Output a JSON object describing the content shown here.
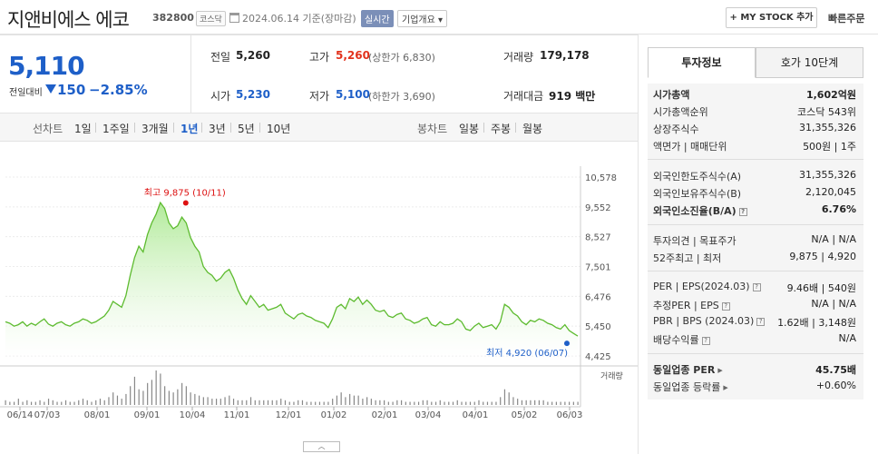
{
  "header": {
    "company_name": "지앤비에스 에코",
    "stock_code": "382800",
    "market_badge": "코스닥",
    "date_text": "2024.06.14 기준(장마감)",
    "live_badge": "실시간",
    "corp_overview_label": "기업개요 ▾",
    "mystock_label": "+ MY STOCK 추가",
    "quick_order_label": "빠른주문"
  },
  "price": {
    "current": "5,110",
    "vs_prev_label": "전일대비",
    "change": "150",
    "change_pct": "−2.85%"
  },
  "summary": {
    "prev_close_label": "전일",
    "prev_close": "5,260",
    "high_label": "고가",
    "high": "5,260",
    "upper_limit": "(상한가 6,830)",
    "volume_label": "거래량",
    "volume": "179,178",
    "open_label": "시가",
    "open": "5,230",
    "low_label": "저가",
    "low": "5,100",
    "lower_limit": "(하한가 3,690)",
    "amount_label": "거래대금",
    "amount": "919 백만"
  },
  "period_tabs": {
    "line_chart_label": "선차트",
    "items": [
      "1일",
      "1주일",
      "3개월",
      "1년",
      "3년",
      "5년",
      "10년"
    ],
    "selected": "1년",
    "candle_label": "봉차트",
    "candle_items": [
      "일봉",
      "주봉",
      "월봉"
    ]
  },
  "right_panel": {
    "tab_invest": "투자정보",
    "tab_orderbook": "호가 10단계",
    "market_cap_label": "시가총액",
    "market_cap": "1,602억원",
    "market_cap_rank_label": "시가총액순위",
    "market_cap_rank": "코스닥 543위",
    "shares_label": "상장주식수",
    "shares": "31,355,326",
    "par_label": "액면가 | 매매단위",
    "par": "500원 | 1주",
    "foreign_limit_label": "외국인한도주식수(A)",
    "foreign_limit": "31,355,326",
    "foreign_hold_label": "외국인보유주식수(B)",
    "foreign_hold": "2,120,045",
    "foreign_ratio_label": "외국인소진율(B/A)",
    "foreign_ratio": "6.76%",
    "opinion_label": "투자의견 | 목표주가",
    "opinion": "N/A | N/A",
    "w52_label": "52주최고 | 최저",
    "w52": "9,875 | 4,920",
    "per_label": "PER | EPS(2024.03)",
    "per": "9.46배 | 540원",
    "est_per_label": "추정PER | EPS",
    "est_per": "N/A | N/A",
    "pbr_label": "PBR | BPS (2024.03)",
    "pbr": "1.62배 | 3,148원",
    "dividend_label": "배당수익률",
    "dividend": "N/A",
    "sector_per_label": "동일업종 PER",
    "sector_per": "45.75배",
    "sector_chg_label": "동일업종 등락률",
    "sector_chg": "+0.60%"
  },
  "chart_data": {
    "type": "line",
    "y_ticks": [
      "10,578",
      "9,552",
      "8,527",
      "7,501",
      "6,476",
      "5,450",
      "4,425"
    ],
    "y_tick_values": [
      10578,
      9552,
      8527,
      7501,
      6476,
      5450,
      4425
    ],
    "x_ticks": [
      "06/14",
      "07/03",
      "08/01",
      "09/01",
      "10/04",
      "11/01",
      "12/01",
      "01/02",
      "02/01",
      "03/04",
      "04/01",
      "05/02",
      "06/03"
    ],
    "high_annotation": "최고 9,875 (10/11)",
    "low_annotation": "최저 4,920 (06/07)",
    "volume_label": "거래량",
    "series": [
      {
        "values": [
          5600,
          5550,
          5450,
          5500,
          5600,
          5450,
          5550,
          5480,
          5600,
          5700,
          5520,
          5450,
          5550,
          5600,
          5500,
          5450,
          5550,
          5600,
          5700,
          5650,
          5550,
          5600,
          5700,
          5800,
          6000,
          6300,
          6200,
          6100,
          6500,
          7200,
          7800,
          8200,
          8000,
          8600,
          9000,
          9300,
          9700,
          9500,
          9000,
          8800,
          8900,
          9200,
          9000,
          8500,
          8200,
          8000,
          7500,
          7300,
          7200,
          7000,
          7100,
          7300,
          7400,
          7100,
          6700,
          6400,
          6200,
          6500,
          6300,
          6100,
          6200,
          6000,
          6050,
          6100,
          6200,
          5900,
          5800,
          5700,
          5850,
          5900,
          5800,
          5750,
          5650,
          5600,
          5550,
          5400,
          5700,
          6100,
          6200,
          6050,
          6400,
          6300,
          6450,
          6200,
          6350,
          6200,
          6000,
          5950,
          6000,
          5800,
          5750,
          5850,
          5900,
          5700,
          5650,
          5550,
          5600,
          5700,
          5750,
          5500,
          5450,
          5600,
          5500,
          5500,
          5550,
          5700,
          5600,
          5350,
          5300,
          5450,
          5550,
          5400,
          5450,
          5500,
          5350,
          5600,
          6200,
          6100,
          5900,
          5800,
          5600,
          5500,
          5650,
          5600,
          5700,
          5650,
          5550,
          5500,
          5400,
          5350,
          5500,
          5300,
          5200,
          5110
        ]
      }
    ],
    "volume": [
      3,
      2,
      2,
      4,
      2,
      3,
      2,
      2,
      3,
      2,
      4,
      3,
      2,
      2,
      3,
      2,
      2,
      3,
      4,
      3,
      2,
      3,
      4,
      3,
      5,
      8,
      6,
      4,
      7,
      12,
      18,
      10,
      9,
      14,
      16,
      22,
      20,
      12,
      9,
      8,
      10,
      14,
      12,
      8,
      7,
      6,
      5,
      5,
      4,
      4,
      4,
      5,
      6,
      4,
      3,
      3,
      3,
      5,
      3,
      3,
      3,
      3,
      3,
      3,
      4,
      3,
      2,
      2,
      3,
      3,
      2,
      2,
      2,
      2,
      2,
      2,
      4,
      6,
      8,
      5,
      7,
      6,
      6,
      4,
      5,
      4,
      3,
      3,
      3,
      2,
      2,
      3,
      3,
      2,
      2,
      2,
      2,
      3,
      3,
      2,
      2,
      3,
      2,
      2,
      2,
      3,
      2,
      2,
      2,
      2,
      3,
      2,
      2,
      2,
      2,
      5,
      10,
      8,
      5,
      4,
      3,
      3,
      3,
      3,
      3,
      3,
      2,
      2,
      2,
      2,
      2,
      2,
      2,
      2
    ]
  }
}
